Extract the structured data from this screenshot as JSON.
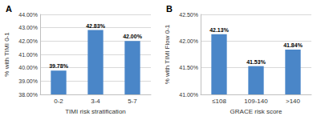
{
  "chart_data": [
    {
      "type": "bar",
      "title": "A",
      "x_label": "TIMI risk stratification",
      "y_label": "% with TIMI 0-1",
      "categories": [
        "0-2",
        "3-4",
        "5-7"
      ],
      "values": [
        39.78,
        42.83,
        42.0
      ],
      "value_labels": [
        "39.78%",
        "42.83%",
        "42.00%"
      ],
      "color": "#4a86c8",
      "ylim": [
        38,
        44
      ],
      "yticks": [
        {
          "value": 38,
          "label": "38.00%"
        },
        {
          "value": 39,
          "label": "39.00%"
        },
        {
          "value": 40,
          "label": "40.00%"
        },
        {
          "value": 41,
          "label": "41.00%"
        },
        {
          "value": 42,
          "label": "42.00%"
        },
        {
          "value": 43,
          "label": "43.00%"
        },
        {
          "value": 44,
          "label": "44.00%"
        }
      ],
      "grid": true,
      "data_labels": true
    },
    {
      "type": "bar",
      "title": "B",
      "x_label": "GRACE risk score",
      "y_label": "% with TIMI Flow 0-1",
      "categories": [
        "≤108",
        "109-140",
        ">140"
      ],
      "values": [
        42.13,
        41.53,
        41.84
      ],
      "value_labels": [
        "42.13%",
        "41.53%",
        "41.84%"
      ],
      "color": "#4a86c8",
      "ylim": [
        41,
        42.5
      ],
      "yticks": [
        {
          "value": 41,
          "label": "41.00%"
        },
        {
          "value": 41.5,
          "label": "41.50%"
        },
        {
          "value": 42,
          "label": "42.00%"
        },
        {
          "value": 42.5,
          "label": "42.50%"
        }
      ],
      "grid": true,
      "data_labels": true
    }
  ]
}
